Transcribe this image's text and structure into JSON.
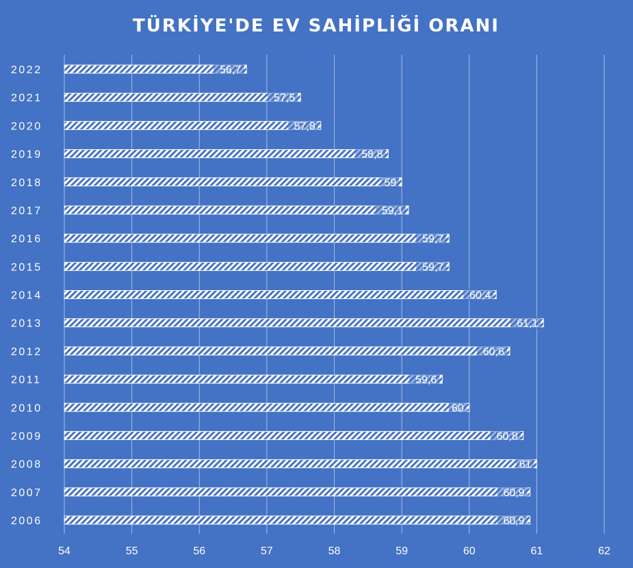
{
  "chart_data": {
    "type": "bar",
    "orientation": "horizontal",
    "title": "TÜRKİYE'DE  EV SAHİPLİĞİ ORANI",
    "categories": [
      "2022",
      "2021",
      "2020",
      "2019",
      "2018",
      "2017",
      "2016",
      "2015",
      "2014",
      "2013",
      "2012",
      "2011",
      "2010",
      "2009",
      "2008",
      "2007",
      "2006"
    ],
    "values": [
      56.7,
      57.5,
      57.8,
      58.8,
      59,
      59.1,
      59.7,
      59.7,
      60.4,
      61.1,
      60.6,
      59.6,
      60,
      60.8,
      61,
      60.9,
      60.9
    ],
    "data_labels": [
      "56,7",
      "57,5",
      "57,8",
      "58,8",
      "59",
      "59,1",
      "59,7",
      "59,7",
      "60,4",
      "61,1",
      "60,6",
      "59,6",
      "60",
      "60,8",
      "61",
      "60,9",
      "60,9"
    ],
    "x_ticks": [
      "54",
      "55",
      "56",
      "57",
      "58",
      "59",
      "60",
      "61",
      "62"
    ],
    "xlim": [
      54,
      62
    ],
    "grid": true,
    "legend": "none",
    "colors": {
      "background": "#4472c4",
      "bar_fill": "#ffffff",
      "bar_hatch": "#4472c4",
      "text": "#ffffff",
      "grid": "#a9bde6"
    }
  }
}
